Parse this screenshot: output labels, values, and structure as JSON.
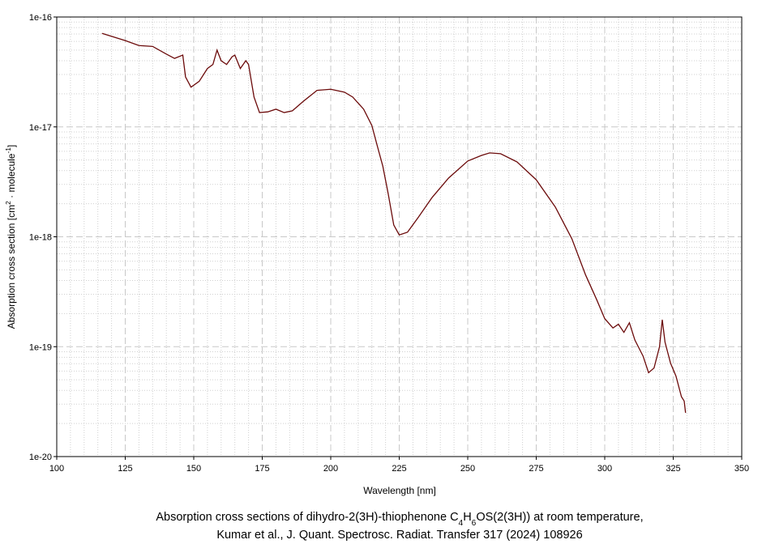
{
  "chart_data": {
    "type": "line",
    "log_y": true,
    "grid": true,
    "x_label": "Wavelength [nm]",
    "y_label": [
      {
        "text": "Absorption cross section [cm"
      },
      {
        "text": "2",
        "baseline": "super"
      },
      {
        "text": " · molecule"
      },
      {
        "text": "-1",
        "baseline": "super"
      },
      {
        "text": "]"
      }
    ],
    "caption": [
      [
        {
          "text": "Absorption cross sections of dihydro-2(3H)-thiophenone C"
        },
        {
          "text": "4",
          "baseline": "sub"
        },
        {
          "text": "H"
        },
        {
          "text": "6",
          "baseline": "sub"
        },
        {
          "text": "OS(2(3H)) at room temperature,"
        }
      ],
      [
        {
          "text": "Kumar et al., J. Quant. Spectrosc. Radiat. Transfer 317 (2024) 108926"
        }
      ]
    ],
    "xlim": [
      100,
      350
    ],
    "xticks": [
      100,
      125,
      150,
      175,
      200,
      225,
      250,
      275,
      300,
      325,
      350
    ],
    "x_minor_ticks": [
      105,
      110,
      115,
      120,
      130,
      135,
      140,
      145,
      155,
      160,
      165,
      170,
      180,
      185,
      190,
      195,
      205,
      210,
      215,
      220,
      230,
      235,
      240,
      245,
      255,
      260,
      265,
      270,
      280,
      285,
      290,
      295,
      305,
      310,
      315,
      320,
      330,
      335,
      340,
      345
    ],
    "ylim": [
      1e-20,
      1e-16
    ],
    "yticks": [
      {
        "value": 1e-20,
        "label": "1e-20"
      },
      {
        "value": 1e-19,
        "label": "1e-19"
      },
      {
        "value": 1e-18,
        "label": "1e-18"
      },
      {
        "value": 1e-17,
        "label": "1e-17"
      },
      {
        "value": 1e-16,
        "label": "1e-16"
      }
    ],
    "y_minor_ticks": [
      2e-20,
      3e-20,
      4e-20,
      5e-20,
      6e-20,
      7e-20,
      8e-20,
      9e-20,
      2e-19,
      3e-19,
      4e-19,
      5e-19,
      6e-19,
      7e-19,
      8e-19,
      9e-19,
      2e-18,
      3e-18,
      4e-18,
      5e-18,
      6e-18,
      7e-18,
      8e-18,
      9e-18,
      2e-17,
      3e-17,
      4e-17,
      5e-17,
      6e-17,
      7e-17,
      8e-17,
      9e-17
    ],
    "series": [
      {
        "color": "#6b0a0a",
        "x": [
          116.5,
          125,
          130,
          135,
          140,
          143,
          146,
          147,
          149,
          152,
          155,
          157,
          158.5,
          160,
          162,
          164,
          165,
          167,
          169,
          170,
          172,
          174,
          177,
          180,
          183,
          186,
          190,
          195,
          200,
          205,
          208,
          212,
          215,
          217,
          219,
          221,
          223,
          225,
          228,
          232,
          237,
          243,
          250,
          255,
          258,
          262,
          268,
          275,
          282,
          288,
          293,
          297,
          300,
          303,
          305,
          307,
          309,
          311,
          314,
          316,
          318,
          320,
          321,
          322,
          324,
          326,
          328,
          329,
          329.5
        ],
        "values": [
          7.1e-17,
          6.1e-17,
          5.5e-17,
          5.4e-17,
          4.6e-17,
          4.2e-17,
          4.5e-17,
          2.85e-17,
          2.3e-17,
          2.6e-17,
          3.4e-17,
          3.7e-17,
          5e-17,
          4e-17,
          3.7e-17,
          4.35e-17,
          4.5e-17,
          3.4e-17,
          4e-17,
          3.7e-17,
          1.87e-17,
          1.35e-17,
          1.37e-17,
          1.45e-17,
          1.35e-17,
          1.4e-17,
          1.71e-17,
          2.15e-17,
          2.2e-17,
          2.07e-17,
          1.87e-17,
          1.45e-17,
          1.03e-17,
          6.7e-18,
          4.4e-18,
          2.44e-18,
          1.28e-18,
          1.04e-18,
          1.1e-18,
          1.51e-18,
          2.28e-18,
          3.42e-18,
          4.89e-18,
          5.5e-18,
          5.8e-18,
          5.7e-18,
          4.8e-18,
          3.3e-18,
          1.86e-18,
          9.6e-19,
          4.5e-19,
          2.7e-19,
          1.8e-19,
          1.48e-19,
          1.6e-19,
          1.35e-19,
          1.65e-19,
          1.15e-19,
          8.2e-20,
          5.8e-20,
          6.4e-20,
          1e-19,
          1.76e-19,
          1.1e-19,
          7.1e-20,
          5.4e-20,
          3.5e-20,
          3.2e-20,
          2.5e-20
        ]
      }
    ]
  }
}
